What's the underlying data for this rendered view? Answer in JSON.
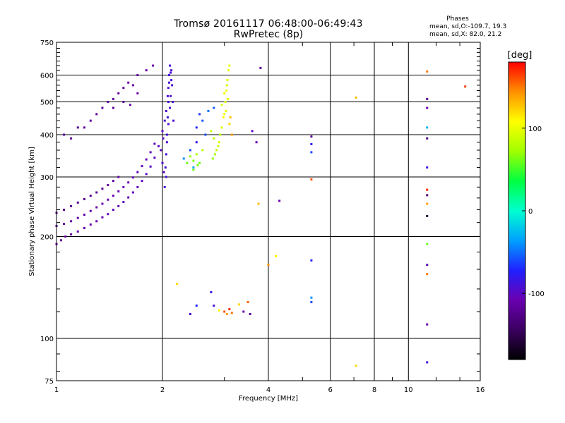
{
  "header": {
    "title": "Tromsø 20161117 06:48:00-06:49:43",
    "subtitle": "RwPretec (8p)",
    "phase_heading": "Phases",
    "phase_o": "mean, sd,O:-109.7, 19.3",
    "phase_x": "mean, sd,X:  82.0, 21.2"
  },
  "colorbar": {
    "unit": "[deg]",
    "range": [
      -180,
      180
    ],
    "ticks": [
      {
        "value": 100,
        "label": "100"
      },
      {
        "value": 0,
        "label": "0"
      },
      {
        "value": -100,
        "label": "-100"
      }
    ],
    "stops": [
      "#000000",
      "#3a0060",
      "#6a00b0",
      "#2020ff",
      "#00a0ff",
      "#00ffd0",
      "#00ff40",
      "#a0ff00",
      "#ffff00",
      "#ff9000",
      "#ff0000"
    ]
  },
  "chart_data": {
    "type": "scatter",
    "xlabel": "Frequency [MHz]",
    "ylabel": "Stationary phase Virtual Height [km]",
    "xscale": "log",
    "yscale": "log",
    "xlim": [
      1,
      16
    ],
    "ylim": [
      75,
      750
    ],
    "xticks": [
      {
        "value": 1,
        "label": "1"
      },
      {
        "value": 2,
        "label": "2"
      },
      {
        "value": 4,
        "label": "4"
      },
      {
        "value": 6,
        "label": "6"
      },
      {
        "value": 8,
        "label": "8"
      },
      {
        "value": 10,
        "label": "10"
      },
      {
        "value": 16,
        "label": "16"
      }
    ],
    "yticks": [
      {
        "value": 75,
        "label": "75"
      },
      {
        "value": 100,
        "label": "100"
      },
      {
        "value": 200,
        "label": "200"
      },
      {
        "value": 300,
        "label": "300"
      },
      {
        "value": 400,
        "label": "400"
      },
      {
        "value": 500,
        "label": "500"
      },
      {
        "value": 600,
        "label": "600"
      },
      {
        "value": 750,
        "label": "750"
      }
    ],
    "points": [
      [
        1.0,
        190,
        -115
      ],
      [
        1.03,
        195,
        -115
      ],
      [
        1.06,
        200,
        -112
      ],
      [
        1.1,
        203,
        -112
      ],
      [
        1.15,
        207,
        -110
      ],
      [
        1.2,
        212,
        -110
      ],
      [
        1.25,
        217,
        -108
      ],
      [
        1.3,
        222,
        -108
      ],
      [
        1.35,
        228,
        -106
      ],
      [
        1.4,
        233,
        -106
      ],
      [
        1.45,
        240,
        -104
      ],
      [
        1.5,
        246,
        -104
      ],
      [
        1.55,
        253,
        -103
      ],
      [
        1.6,
        261,
        -103
      ],
      [
        1.65,
        270,
        -102
      ],
      [
        1.7,
        280,
        -102
      ],
      [
        1.75,
        292,
        -101
      ],
      [
        1.8,
        306,
        -101
      ],
      [
        1.85,
        322,
        -100
      ],
      [
        1.9,
        342,
        -100
      ],
      [
        1.95,
        370,
        -100
      ],
      [
        2.0,
        410,
        -102
      ],
      [
        1.0,
        215,
        -118
      ],
      [
        1.05,
        218,
        -116
      ],
      [
        1.1,
        222,
        -116
      ],
      [
        1.15,
        227,
        -114
      ],
      [
        1.2,
        232,
        -114
      ],
      [
        1.25,
        238,
        -112
      ],
      [
        1.3,
        244,
        -112
      ],
      [
        1.35,
        250,
        -110
      ],
      [
        1.4,
        257,
        -110
      ],
      [
        1.45,
        264,
        -108
      ],
      [
        1.5,
        272,
        -108
      ],
      [
        1.55,
        280,
        -106
      ],
      [
        1.6,
        289,
        -106
      ],
      [
        1.65,
        299,
        -105
      ],
      [
        1.7,
        310,
        -105
      ],
      [
        1.75,
        323,
        -104
      ],
      [
        1.8,
        338,
        -104
      ],
      [
        1.85,
        355,
        -103
      ],
      [
        1.9,
        376,
        -103
      ],
      [
        1.0,
        235,
        -125
      ],
      [
        1.05,
        240,
        -124
      ],
      [
        1.1,
        246,
        -123
      ],
      [
        1.15,
        252,
        -122
      ],
      [
        1.2,
        258,
        -121
      ],
      [
        1.25,
        264,
        -120
      ],
      [
        1.3,
        270,
        -119
      ],
      [
        1.35,
        277,
        -118
      ],
      [
        1.4,
        284,
        -117
      ],
      [
        1.45,
        292,
        -116
      ],
      [
        1.5,
        300,
        -115
      ],
      [
        1.05,
        400,
        -120
      ],
      [
        1.1,
        390,
        -118
      ],
      [
        1.15,
        420,
        -120
      ],
      [
        1.3,
        460,
        -116
      ],
      [
        1.35,
        480,
        -118
      ],
      [
        1.4,
        500,
        -116
      ],
      [
        1.45,
        510,
        -115
      ],
      [
        1.5,
        530,
        -115
      ],
      [
        1.55,
        550,
        -114
      ],
      [
        1.6,
        570,
        -113
      ],
      [
        1.7,
        600,
        -112
      ],
      [
        1.8,
        620,
        -110
      ],
      [
        1.88,
        640,
        -112
      ],
      [
        1.2,
        420,
        -115
      ],
      [
        1.25,
        440,
        -114
      ],
      [
        1.45,
        480,
        -117
      ],
      [
        1.55,
        500,
        -116
      ],
      [
        1.65,
        560,
        -112
      ],
      [
        1.62,
        490,
        -114
      ],
      [
        1.7,
        530,
        -110
      ],
      [
        2.05,
        300,
        -90
      ],
      [
        2.05,
        350,
        -92
      ],
      [
        2.06,
        400,
        -90
      ],
      [
        2.07,
        450,
        -88
      ],
      [
        2.08,
        500,
        -90
      ],
      [
        2.08,
        550,
        -92
      ],
      [
        2.09,
        600,
        -90
      ],
      [
        2.1,
        640,
        -88
      ],
      [
        2.03,
        280,
        -95
      ],
      [
        2.04,
        320,
        -93
      ],
      [
        2.06,
        380,
        -95
      ],
      [
        2.08,
        430,
        -92
      ],
      [
        2.1,
        480,
        -94
      ],
      [
        2.11,
        520,
        -92
      ],
      [
        2.12,
        580,
        -90
      ],
      [
        2.12,
        620,
        -94
      ],
      [
        1.98,
        360,
        -100
      ],
      [
        2.0,
        330,
        -98
      ],
      [
        2.02,
        310,
        -98
      ],
      [
        2.01,
        390,
        -99
      ],
      [
        2.03,
        440,
        -97
      ],
      [
        2.05,
        470,
        -96
      ],
      [
        2.07,
        520,
        -96
      ],
      [
        2.09,
        570,
        -95
      ],
      [
        2.11,
        610,
        -94
      ],
      [
        2.13,
        560,
        -93
      ],
      [
        2.14,
        500,
        -92
      ],
      [
        2.15,
        440,
        -94
      ],
      [
        2.4,
        360,
        -60
      ],
      [
        2.5,
        420,
        -70
      ],
      [
        2.55,
        460,
        -65
      ],
      [
        2.6,
        440,
        -55
      ],
      [
        2.65,
        400,
        -60
      ],
      [
        2.5,
        380,
        -80
      ],
      [
        2.7,
        470,
        -50
      ],
      [
        2.8,
        480,
        -55
      ],
      [
        2.3,
        340,
        -40
      ],
      [
        2.45,
        320,
        -35
      ],
      [
        2.35,
        330,
        60
      ],
      [
        2.4,
        345,
        70
      ],
      [
        2.45,
        335,
        65
      ],
      [
        2.5,
        350,
        75
      ],
      [
        2.55,
        330,
        60
      ],
      [
        2.6,
        360,
        80
      ],
      [
        2.45,
        315,
        62
      ],
      [
        2.52,
        325,
        66
      ],
      [
        2.9,
        380,
        90
      ],
      [
        2.95,
        420,
        95
      ],
      [
        3.0,
        460,
        100
      ],
      [
        3.02,
        500,
        95
      ],
      [
        3.04,
        540,
        100
      ],
      [
        3.06,
        580,
        95
      ],
      [
        3.08,
        620,
        100
      ],
      [
        2.85,
        360,
        85
      ],
      [
        2.8,
        390,
        80
      ],
      [
        2.75,
        410,
        85
      ],
      [
        3.1,
        640,
        100
      ],
      [
        3.05,
        560,
        90
      ],
      [
        3.0,
        530,
        105
      ],
      [
        2.95,
        490,
        95
      ],
      [
        2.98,
        450,
        110
      ],
      [
        3.03,
        470,
        98
      ],
      [
        3.07,
        510,
        96
      ],
      [
        2.92,
        400,
        80
      ],
      [
        2.88,
        370,
        88
      ],
      [
        2.82,
        350,
        75
      ],
      [
        2.78,
        340,
        70
      ],
      [
        3.12,
        450,
        130
      ],
      [
        3.15,
        400,
        140
      ],
      [
        3.1,
        430,
        120
      ],
      [
        3.8,
        630,
        -120
      ],
      [
        3.7,
        380,
        -110
      ],
      [
        3.75,
        250,
        130
      ],
      [
        3.6,
        410,
        -100
      ],
      [
        4.0,
        165,
        145
      ],
      [
        4.2,
        175,
        110
      ],
      [
        4.3,
        255,
        -110
      ],
      [
        3.0,
        120,
        160
      ],
      [
        3.05,
        118,
        140
      ],
      [
        3.1,
        122,
        170
      ],
      [
        3.15,
        119,
        150
      ],
      [
        3.3,
        126,
        120
      ],
      [
        3.4,
        120,
        -110
      ],
      [
        3.5,
        128,
        155
      ],
      [
        3.55,
        118,
        -120
      ],
      [
        2.9,
        121,
        110
      ],
      [
        2.8,
        125,
        -90
      ],
      [
        2.75,
        137,
        -85
      ],
      [
        2.4,
        118,
        -95
      ],
      [
        2.2,
        145,
        120
      ],
      [
        2.5,
        125,
        -70
      ],
      [
        5.3,
        395,
        -120
      ],
      [
        5.3,
        375,
        -80
      ],
      [
        5.3,
        355,
        -60
      ],
      [
        5.3,
        295,
        160
      ],
      [
        5.3,
        170,
        -70
      ],
      [
        5.3,
        132,
        -40
      ],
      [
        5.3,
        128,
        -60
      ],
      [
        7.1,
        515,
        130
      ],
      [
        7.1,
        83,
        120
      ],
      [
        11.3,
        615,
        150
      ],
      [
        11.3,
        510,
        -120
      ],
      [
        11.3,
        480,
        -110
      ],
      [
        11.3,
        420,
        -30
      ],
      [
        11.3,
        390,
        -130
      ],
      [
        11.3,
        320,
        -90
      ],
      [
        11.3,
        275,
        170
      ],
      [
        11.3,
        265,
        -130
      ],
      [
        11.3,
        250,
        140
      ],
      [
        11.3,
        230,
        -160
      ],
      [
        11.3,
        190,
        60
      ],
      [
        11.3,
        165,
        -100
      ],
      [
        11.3,
        155,
        150
      ],
      [
        11.3,
        110,
        -110
      ],
      [
        11.3,
        85,
        -90
      ],
      [
        14.5,
        555,
        165
      ]
    ]
  }
}
